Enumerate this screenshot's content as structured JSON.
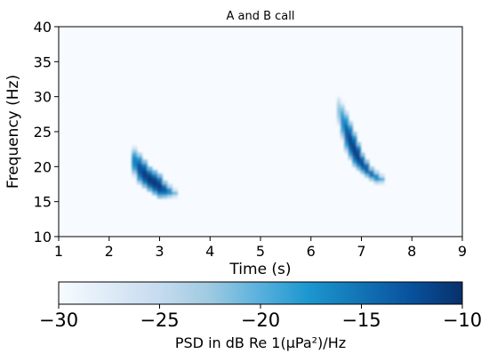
{
  "chart_data": {
    "type": "heatmap",
    "title": "A and B call",
    "xlabel": "Time (s)",
    "ylabel": "Frequency (Hz)",
    "xlim": [
      1,
      9
    ],
    "ylim": [
      10,
      40
    ],
    "x_ticks": [
      1,
      2,
      3,
      4,
      5,
      6,
      7,
      8,
      9
    ],
    "x_tick_labels": [
      "1",
      "2",
      "3",
      "4",
      "5",
      "6",
      "7",
      "8",
      "9"
    ],
    "y_ticks": [
      10,
      15,
      20,
      25,
      30,
      35,
      40
    ],
    "y_tick_labels": [
      "10",
      "15",
      "20",
      "25",
      "30",
      "35",
      "40"
    ],
    "grid": false,
    "colormap": "Blues",
    "colors": {
      "low": "#f7fbff",
      "mid": "#3c9dd0",
      "high": "#08306b"
    },
    "colorbar": {
      "orientation": "horizontal",
      "placement": "bottom",
      "label": "PSD in dB Re 1(µPa²)/Hz",
      "range": [
        -30,
        -10
      ],
      "ticks": [
        -30,
        -25,
        -20,
        -15,
        -10
      ],
      "tick_labels": [
        "−30",
        "−25",
        "−20",
        "−15",
        "−10"
      ]
    },
    "background_level_db": -30,
    "calls": [
      {
        "name": "A",
        "frames": [
          {
            "t": 2.5,
            "f_low": 18.5,
            "f_high": 23.0,
            "peak_db": -16.0
          },
          {
            "t": 2.6,
            "f_low": 17.5,
            "f_high": 22.0,
            "peak_db": -12.5
          },
          {
            "t": 2.7,
            "f_low": 17.0,
            "f_high": 21.0,
            "peak_db": -11.0
          },
          {
            "t": 2.8,
            "f_low": 16.5,
            "f_high": 20.0,
            "peak_db": -10.5
          },
          {
            "t": 2.9,
            "f_low": 16.0,
            "f_high": 19.5,
            "peak_db": -10.5
          },
          {
            "t": 3.0,
            "f_low": 15.5,
            "f_high": 19.0,
            "peak_db": -11.0
          },
          {
            "t": 3.1,
            "f_low": 15.5,
            "f_high": 18.0,
            "peak_db": -13.0
          },
          {
            "t": 3.2,
            "f_low": 15.5,
            "f_high": 17.5,
            "peak_db": -16.5
          },
          {
            "t": 3.3,
            "f_low": 15.5,
            "f_high": 17.0,
            "peak_db": -21.0
          }
        ]
      },
      {
        "name": "B",
        "frames": [
          {
            "t": 6.55,
            "f_low": 25.0,
            "f_high": 31.0,
            "peak_db": -22.0
          },
          {
            "t": 6.62,
            "f_low": 23.5,
            "f_high": 29.5,
            "peak_db": -17.0
          },
          {
            "t": 6.7,
            "f_low": 22.0,
            "f_high": 28.0,
            "peak_db": -13.5
          },
          {
            "t": 6.78,
            "f_low": 21.0,
            "f_high": 26.5,
            "peak_db": -11.5
          },
          {
            "t": 6.86,
            "f_low": 20.0,
            "f_high": 25.0,
            "peak_db": -11.0
          },
          {
            "t": 6.94,
            "f_low": 19.5,
            "f_high": 23.5,
            "peak_db": -11.0
          },
          {
            "t": 7.02,
            "f_low": 19.0,
            "f_high": 22.0,
            "peak_db": -12.0
          },
          {
            "t": 7.1,
            "f_low": 18.5,
            "f_high": 21.0,
            "peak_db": -13.0
          },
          {
            "t": 7.2,
            "f_low": 18.0,
            "f_high": 20.0,
            "peak_db": -14.5
          },
          {
            "t": 7.3,
            "f_low": 17.5,
            "f_high": 19.5,
            "peak_db": -16.5
          },
          {
            "t": 7.4,
            "f_low": 17.5,
            "f_high": 19.0,
            "peak_db": -19.5
          }
        ]
      }
    ]
  }
}
